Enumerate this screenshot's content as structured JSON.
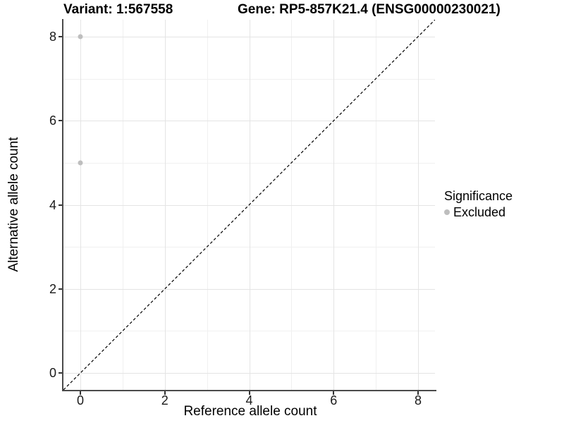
{
  "chart_data": {
    "type": "scatter",
    "titles": {
      "left": "Variant: 1:567558",
      "right": "Gene: RP5-857K21.4 (ENSG00000230021)"
    },
    "xlabel": "Reference allele count",
    "ylabel": "Alternative allele count",
    "xlim": [
      -0.4,
      8.4
    ],
    "ylim": [
      -0.4,
      8.4
    ],
    "xticks": [
      0,
      2,
      4,
      6,
      8
    ],
    "yticks": [
      0,
      2,
      4,
      6,
      8
    ],
    "minor_xticks": [
      1,
      3,
      5,
      7
    ],
    "minor_yticks": [
      1,
      3,
      5,
      7
    ],
    "grid": {
      "major": true,
      "minor": true
    },
    "points": [
      {
        "x": 0,
        "y": 8,
        "significance": "Excluded"
      },
      {
        "x": 0,
        "y": 5,
        "significance": "Excluded"
      }
    ],
    "identity_line": {
      "from": [
        -0.4,
        -0.4
      ],
      "to": [
        8.4,
        8.4
      ],
      "style": "dashed",
      "stroke": "#000000"
    },
    "legend": {
      "title": "Significance",
      "position": "right",
      "entries": [
        {
          "label": "Excluded",
          "color": "#bebebe"
        }
      ]
    },
    "colors": {
      "background": "#ffffff",
      "title": "#000000",
      "axis_line": "#4a4a4a",
      "tick": "#333333",
      "tick_label": "#1a1a1a",
      "grid_major": "#e4e4e4",
      "grid_minor": "#f0f0f0"
    }
  }
}
